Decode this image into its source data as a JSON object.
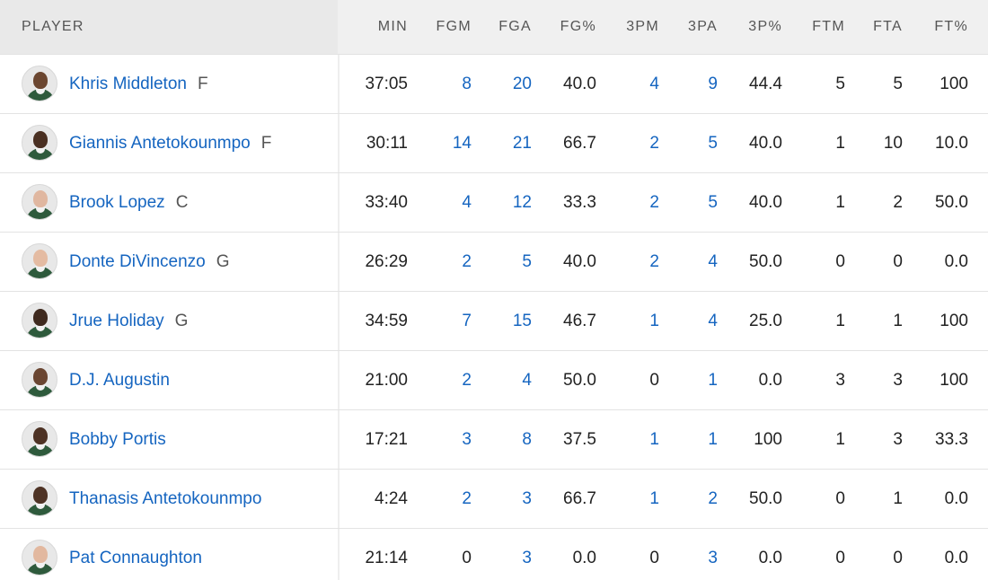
{
  "columns": {
    "player": "PLAYER",
    "min": "MIN",
    "fgm": "FGM",
    "fga": "FGA",
    "fgp": "FG%",
    "tpm": "3PM",
    "tpa": "3PA",
    "tpp": "3P%",
    "ftm": "FTM",
    "fta": "FTA",
    "ftp": "FT%"
  },
  "rows": [
    {
      "name": "Khris Middleton",
      "pos": "F",
      "skin": "#6b4630",
      "min": "37:05",
      "fgm": "8",
      "fga": "20",
      "fgp": "40.0",
      "tpm": "4",
      "tpa": "9",
      "tpp": "44.4",
      "ftm": "5",
      "fta": "5",
      "ftp": "100"
    },
    {
      "name": "Giannis Antetokounmpo",
      "pos": "F",
      "skin": "#4a3022",
      "min": "30:11",
      "fgm": "14",
      "fga": "21",
      "fgp": "66.7",
      "tpm": "2",
      "tpa": "5",
      "tpp": "40.0",
      "ftm": "1",
      "fta": "10",
      "ftp": "10.0"
    },
    {
      "name": "Brook Lopez",
      "pos": "C",
      "skin": "#e0b7a0",
      "min": "33:40",
      "fgm": "4",
      "fga": "12",
      "fgp": "33.3",
      "tpm": "2",
      "tpa": "5",
      "tpp": "40.0",
      "ftm": "1",
      "fta": "2",
      "ftp": "50.0"
    },
    {
      "name": "Donte DiVincenzo",
      "pos": "G",
      "skin": "#e4bba2",
      "min": "26:29",
      "fgm": "2",
      "fga": "5",
      "fgp": "40.0",
      "tpm": "2",
      "tpa": "4",
      "tpp": "50.0",
      "ftm": "0",
      "fta": "0",
      "ftp": "0.0"
    },
    {
      "name": "Jrue Holiday",
      "pos": "G",
      "skin": "#3f2a1f",
      "min": "34:59",
      "fgm": "7",
      "fga": "15",
      "fgp": "46.7",
      "tpm": "1",
      "tpa": "4",
      "tpp": "25.0",
      "ftm": "1",
      "fta": "1",
      "ftp": "100"
    },
    {
      "name": "D.J. Augustin",
      "pos": "",
      "skin": "#6a4632",
      "min": "21:00",
      "fgm": "2",
      "fga": "4",
      "fgp": "50.0",
      "tpm": "0",
      "tpa": "1",
      "tpp": "0.0",
      "ftm": "3",
      "fta": "3",
      "ftp": "100"
    },
    {
      "name": "Bobby Portis",
      "pos": "",
      "skin": "#4d3224",
      "min": "17:21",
      "fgm": "3",
      "fga": "8",
      "fgp": "37.5",
      "tpm": "1",
      "tpa": "1",
      "tpp": "100",
      "ftm": "1",
      "fta": "3",
      "ftp": "33.3"
    },
    {
      "name": "Thanasis Antetokounmpo",
      "pos": "",
      "skin": "#4e3325",
      "min": "4:24",
      "fgm": "2",
      "fga": "3",
      "fgp": "66.7",
      "tpm": "1",
      "tpa": "2",
      "tpp": "50.0",
      "ftm": "0",
      "fta": "1",
      "ftp": "0.0"
    },
    {
      "name": "Pat Connaughton",
      "pos": "",
      "skin": "#e2b89f",
      "min": "21:14",
      "fgm": "0",
      "fga": "3",
      "fgp": "0.0",
      "tpm": "0",
      "tpa": "3",
      "tpp": "0.0",
      "ftm": "0",
      "fta": "0",
      "ftp": "0.0"
    }
  ],
  "colors": {
    "link": "#1565c0",
    "text": "#222222",
    "header_bg": "#f0f0f0",
    "jersey": "#2e5a3c"
  }
}
